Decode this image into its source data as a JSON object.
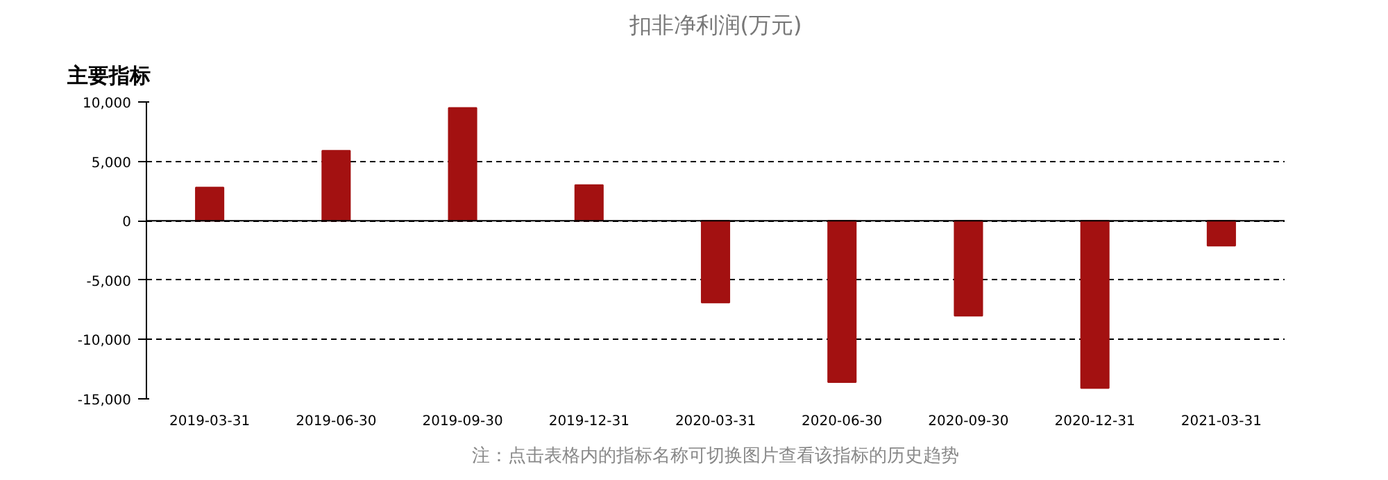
{
  "chart_data": {
    "type": "bar",
    "title": "扣非净利润(万元)",
    "categories": [
      "2019-03-31",
      "2019-06-30",
      "2019-09-30",
      "2019-12-31",
      "2020-03-31",
      "2020-06-30",
      "2020-09-30",
      "2020-12-31",
      "2021-03-31"
    ],
    "series": [
      {
        "color": "#a31111",
        "values": [
          2800,
          5900,
          9500,
          3000,
          -6900,
          -13600,
          -8000,
          -14100,
          -2100
        ]
      }
    ],
    "ylim": [
      -15000,
      10000
    ],
    "yticks": [
      {
        "value": -15000,
        "label": "-15,000"
      },
      {
        "value": -10000,
        "label": "-10,000"
      },
      {
        "value": -5000,
        "label": "-5,000"
      },
      {
        "value": 0,
        "label": "0"
      },
      {
        "value": 5000,
        "label": "5,000"
      },
      {
        "value": 10000,
        "label": "10,000"
      }
    ],
    "grid": "y",
    "annotations": [
      "主要指标",
      "注：点击表格内的指标名称可切换图片查看该指标的历史趋势"
    ]
  }
}
